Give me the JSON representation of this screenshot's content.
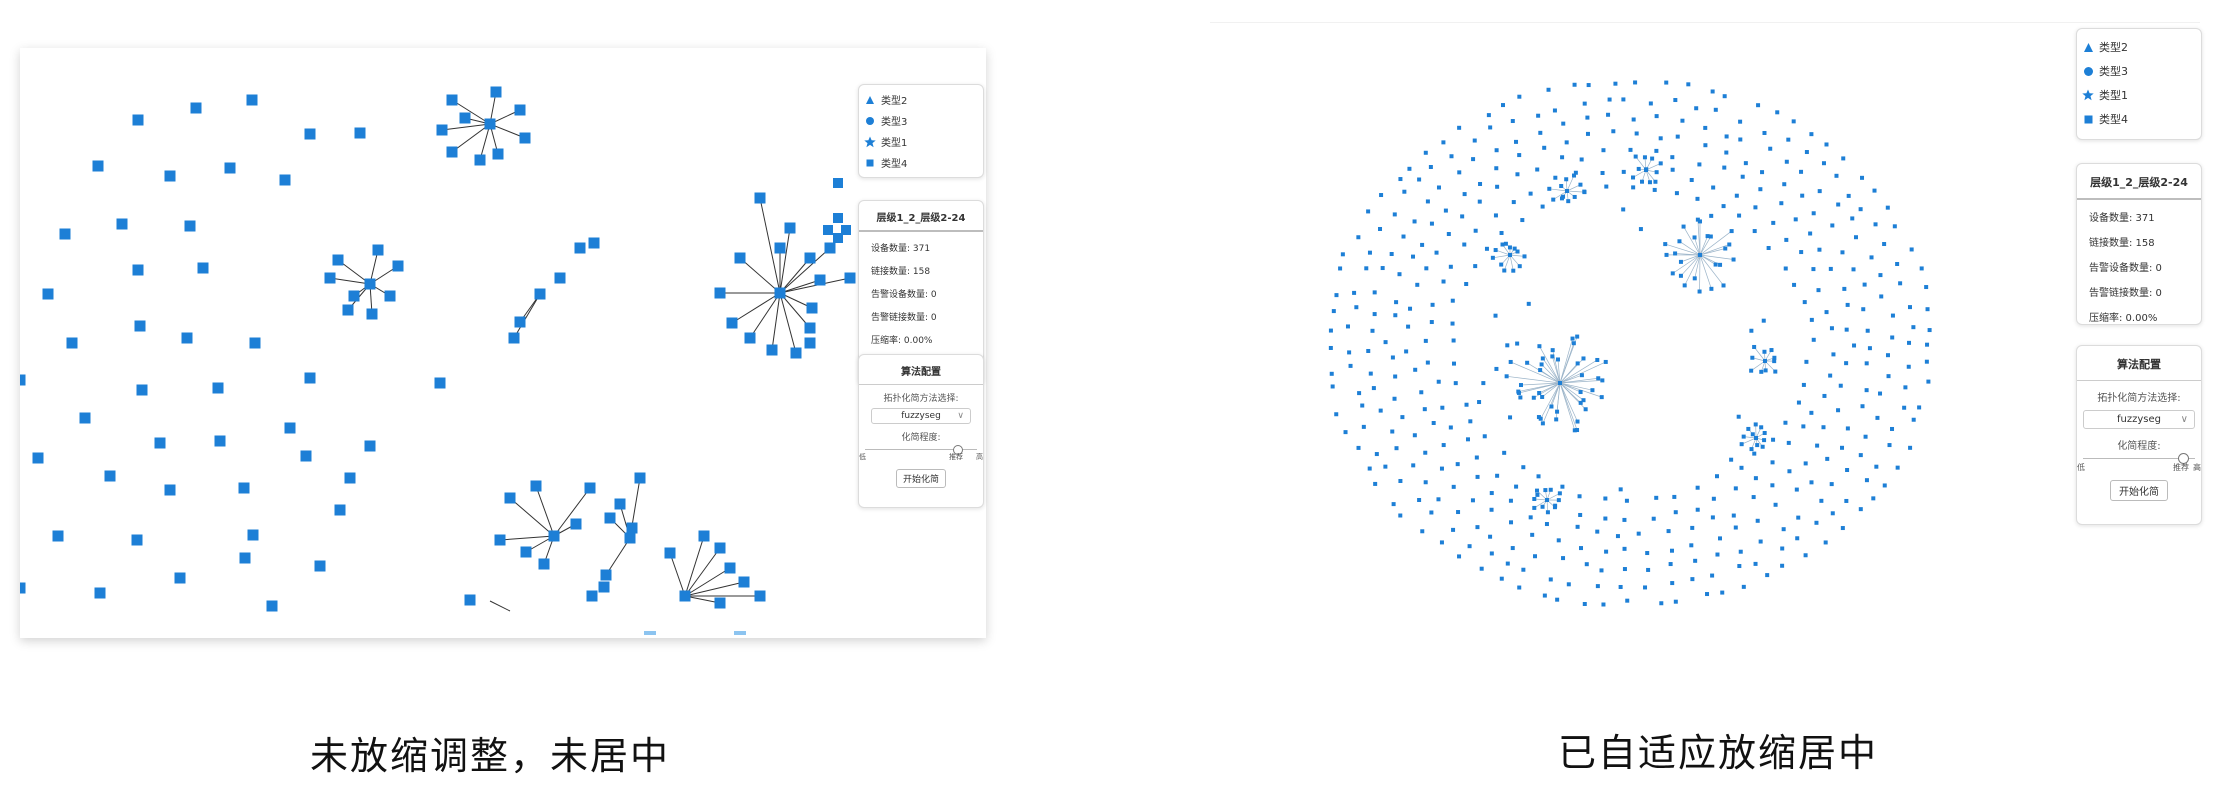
{
  "panels": [
    {
      "id": "left",
      "caption": "未放缩调整，未居中",
      "legend": [
        {
          "icon": "triangle-icon",
          "label": "类型2"
        },
        {
          "icon": "circle-icon",
          "label": "类型3"
        },
        {
          "icon": "star-icon",
          "label": "类型1"
        },
        {
          "icon": "square-icon",
          "label": "类型4"
        }
      ],
      "stats": {
        "title": "层级1_2_层级2-24",
        "rows": [
          "设备数量: 371",
          "链接数量: 158",
          "告警设备数量: 0",
          "告警链接数量: 0",
          "压缩率: 0.00%"
        ]
      },
      "algorithm": {
        "title": "算法配置",
        "method_label": "拓扑化简方法选择:",
        "method_value": "fuzzyseg",
        "degree_label": "化简程度:",
        "slider_min": "低",
        "slider_rec": "推荐",
        "slider_max": "高",
        "slider_level": 0.82,
        "button": "开始化简"
      }
    },
    {
      "id": "right",
      "caption": "已自适应放缩居中",
      "legend": [
        {
          "icon": "triangle-icon",
          "label": "类型2"
        },
        {
          "icon": "circle-icon",
          "label": "类型3"
        },
        {
          "icon": "star-icon",
          "label": "类型1"
        },
        {
          "icon": "square-icon",
          "label": "类型4"
        }
      ],
      "stats": {
        "title": "层级1_2_层级2-24",
        "rows": [
          "设备数量: 371",
          "链接数量: 158",
          "告警设备数量: 0",
          "告警链接数量: 0",
          "压缩率: 0.00%"
        ]
      },
      "algorithm": {
        "title": "算法配置",
        "method_label": "拓扑化简方法选择:",
        "method_value": "fuzzyseg",
        "degree_label": "化简程度:",
        "slider_min": "低",
        "slider_rec": "推荐",
        "slider_max": "高",
        "slider_level": 0.88,
        "button": "开始化简"
      }
    }
  ],
  "colors": {
    "node": "#1d7fd6",
    "node_light": "#8cc4f0",
    "edge": "#333333",
    "edge_light": "#9ab3c8"
  }
}
